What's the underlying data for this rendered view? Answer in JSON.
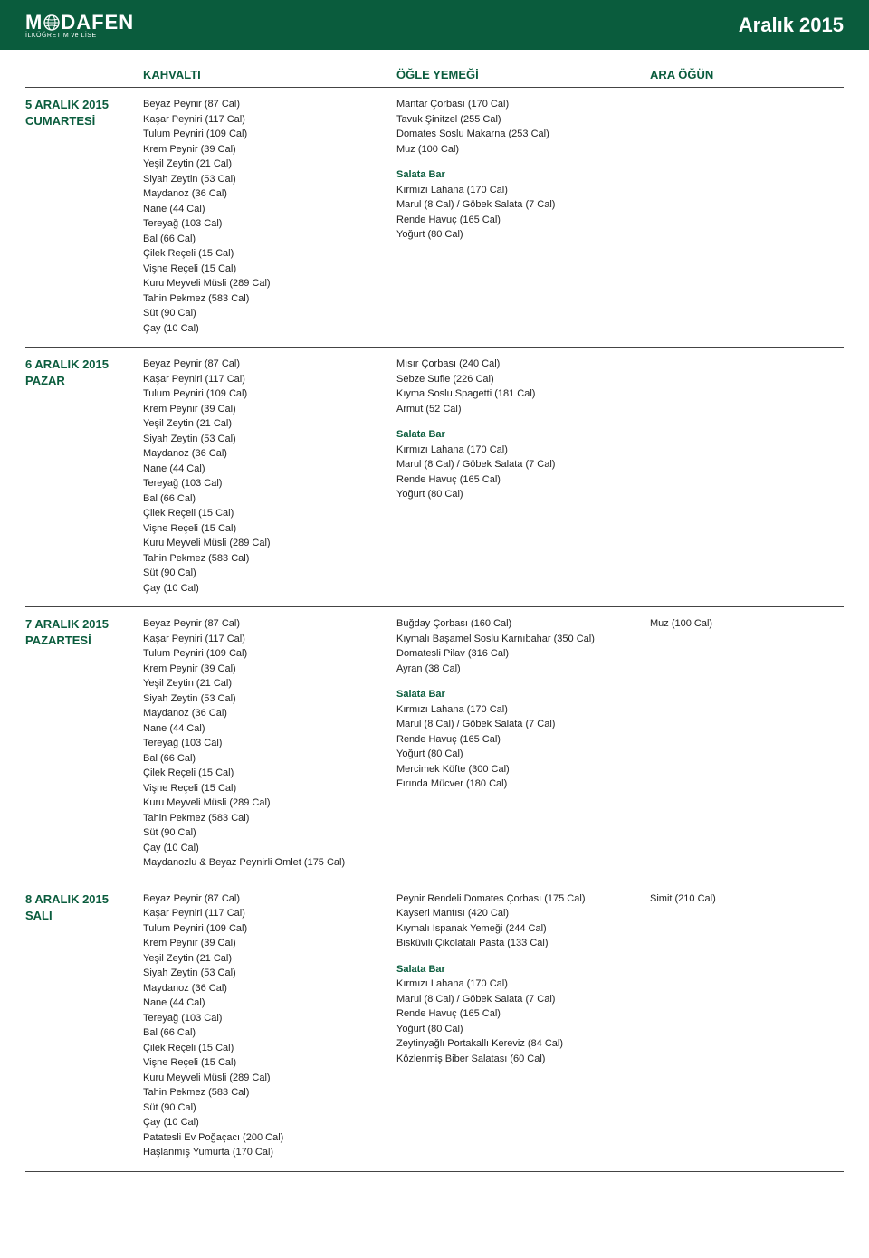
{
  "header": {
    "brand_left": "M",
    "brand_right": "DAFEN",
    "brand_sub": "İLKÖĞRETİM ve LİSE",
    "month": "Aralık 2015"
  },
  "columns": {
    "kahvalti": "KAHVALTI",
    "ogle": "ÖĞLE YEMEĞİ",
    "ara": "ARA ÖĞÜN"
  },
  "salata_bar_label": "Salata Bar",
  "days": [
    {
      "date_line1": "5 ARALIK 2015",
      "date_line2": "CUMARTESİ",
      "kahvalti": [
        "Beyaz Peynir (87 Cal)",
        "Kaşar Peyniri (117 Cal)",
        "Tulum Peyniri (109 Cal)",
        "Krem Peynir (39 Cal)",
        "Yeşil Zeytin (21 Cal)",
        "Siyah Zeytin (53 Cal)",
        "Maydanoz (36 Cal)",
        "Nane (44 Cal)",
        "Tereyağ (103 Cal)",
        "Bal (66 Cal)",
        "Çilek Reçeli (15 Cal)",
        "Vişne Reçeli (15 Cal)",
        "Kuru Meyveli Müsli (289 Cal)",
        "Tahin Pekmez (583 Cal)",
        "Süt (90 Cal)",
        "Çay (10 Cal)"
      ],
      "ogle_main": [
        "Mantar Çorbası (170 Cal)",
        "Tavuk Şinitzel (255 Cal)",
        "Domates Soslu Makarna (253 Cal)",
        "Muz (100 Cal)"
      ],
      "ogle_salata": [
        "Kırmızı Lahana (170 Cal)",
        "Marul (8 Cal) / Göbek Salata (7 Cal)",
        "Rende Havuç (165 Cal)",
        "Yoğurt (80 Cal)"
      ],
      "ara": []
    },
    {
      "date_line1": "6 ARALIK 2015",
      "date_line2": "PAZAR",
      "kahvalti": [
        "Beyaz Peynir (87 Cal)",
        "Kaşar Peyniri (117 Cal)",
        "Tulum Peyniri (109 Cal)",
        "Krem Peynir (39 Cal)",
        "Yeşil Zeytin (21 Cal)",
        "Siyah Zeytin (53 Cal)",
        "Maydanoz (36 Cal)",
        "Nane (44 Cal)",
        "Tereyağ (103 Cal)",
        "Bal (66 Cal)",
        "Çilek Reçeli (15 Cal)",
        "Vişne Reçeli (15 Cal)",
        "Kuru Meyveli Müsli (289 Cal)",
        "Tahin Pekmez (583 Cal)",
        "Süt (90 Cal)",
        "Çay (10 Cal)"
      ],
      "ogle_main": [
        "Mısır Çorbası (240 Cal)",
        "Sebze Sufle (226 Cal)",
        "Kıyma Soslu Spagetti (181 Cal)",
        "Armut (52 Cal)"
      ],
      "ogle_salata": [
        "Kırmızı Lahana (170 Cal)",
        "Marul (8 Cal) / Göbek Salata (7 Cal)",
        "Rende Havuç (165 Cal)",
        "Yoğurt (80 Cal)"
      ],
      "ara": []
    },
    {
      "date_line1": "7 ARALIK 2015",
      "date_line2": "PAZARTESİ",
      "kahvalti": [
        "Beyaz Peynir (87 Cal)",
        "Kaşar Peyniri (117 Cal)",
        "Tulum Peyniri (109 Cal)",
        "Krem Peynir (39 Cal)",
        "Yeşil Zeytin (21 Cal)",
        "Siyah Zeytin (53 Cal)",
        "Maydanoz (36 Cal)",
        "Nane (44 Cal)",
        "Tereyağ (103 Cal)",
        "Bal (66 Cal)",
        "Çilek Reçeli (15 Cal)",
        "Vişne Reçeli (15 Cal)",
        "Kuru Meyveli Müsli (289 Cal)",
        "Tahin Pekmez (583 Cal)",
        "Süt (90 Cal)",
        "Çay (10 Cal)",
        "Maydanozlu & Beyaz Peynirli Omlet (175 Cal)"
      ],
      "ogle_main": [
        "Buğday Çorbası (160 Cal)",
        "Kıymalı Başamel Soslu Karnıbahar (350 Cal)",
        "Domatesli Pilav (316 Cal)",
        "Ayran (38 Cal)"
      ],
      "ogle_salata": [
        "Kırmızı Lahana (170 Cal)",
        "Marul (8 Cal) / Göbek Salata (7 Cal)",
        "Rende Havuç (165 Cal)",
        "Yoğurt (80 Cal)",
        "Mercimek Köfte (300 Cal)",
        "Fırında Mücver (180 Cal)"
      ],
      "ara": [
        "Muz (100 Cal)"
      ]
    },
    {
      "date_line1": "8 ARALIK 2015",
      "date_line2": "SALI",
      "kahvalti": [
        "Beyaz Peynir (87 Cal)",
        "Kaşar Peyniri (117 Cal)",
        "Tulum Peyniri (109 Cal)",
        "Krem Peynir (39 Cal)",
        "Yeşil Zeytin (21 Cal)",
        "Siyah Zeytin (53 Cal)",
        "Maydanoz (36 Cal)",
        "Nane (44 Cal)",
        "Tereyağ (103 Cal)",
        "Bal (66 Cal)",
        "Çilek Reçeli (15 Cal)",
        "Vişne Reçeli (15 Cal)",
        "Kuru Meyveli Müsli (289 Cal)",
        "Tahin Pekmez (583 Cal)",
        "Süt (90 Cal)",
        "Çay (10 Cal)",
        "Patatesli Ev Poğaçacı (200 Cal)",
        "Haşlanmış Yumurta (170 Cal)"
      ],
      "ogle_main": [
        "Peynir Rendeli Domates Çorbası (175 Cal)",
        "Kayseri Mantısı (420 Cal)",
        "Kıymalı Ispanak Yemeği (244 Cal)",
        "Bisküvili Çikolatalı Pasta (133 Cal)"
      ],
      "ogle_salata": [
        "Kırmızı Lahana (170 Cal)",
        "Marul (8 Cal) / Göbek Salata (7 Cal)",
        "Rende Havuç (165 Cal)",
        "Yoğurt (80 Cal)",
        "Zeytinyağlı Portakallı Kereviz (84 Cal)",
        "Közlenmiş Biber Salatası (60 Cal)"
      ],
      "ara": [
        "Simit (210 Cal)"
      ]
    }
  ]
}
